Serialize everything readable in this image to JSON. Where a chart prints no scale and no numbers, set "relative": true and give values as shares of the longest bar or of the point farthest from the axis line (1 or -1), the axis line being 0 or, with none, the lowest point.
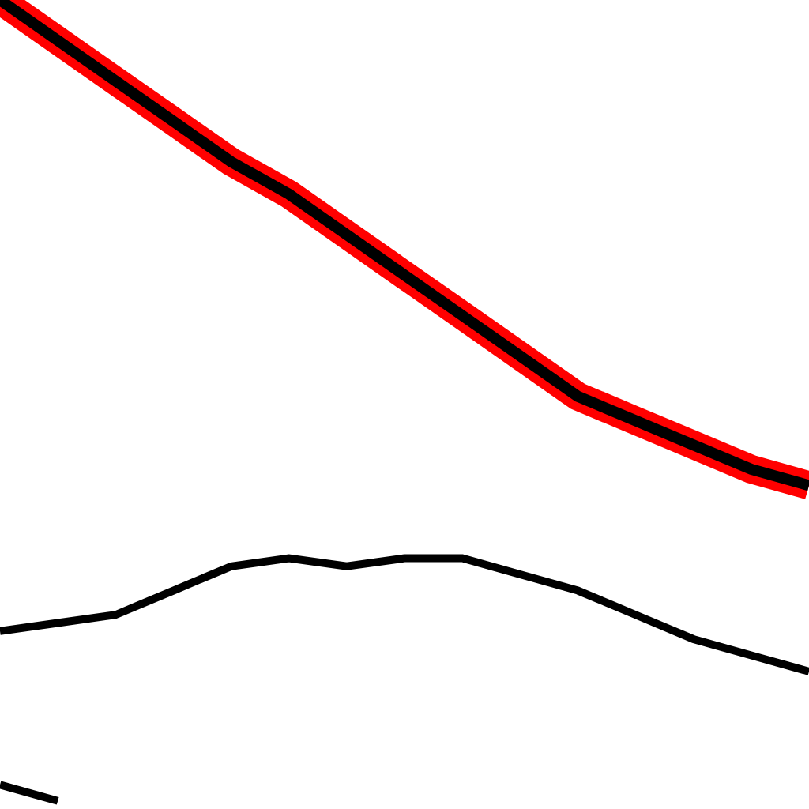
{
  "chart_data": {
    "type": "line",
    "relative": true,
    "marker": "none",
    "line_style": "solid",
    "categories": [
      null,
      null,
      null,
      null,
      null,
      null,
      null,
      null,
      null,
      null,
      null,
      null,
      null,
      null,
      null
    ],
    "series": [
      {
        "color": "#ff0000",
        "values": [
          1.0,
          0.95,
          0.9,
          0.85,
          0.8,
          0.76,
          0.71,
          0.66,
          0.61,
          0.56,
          0.51,
          0.48,
          0.45,
          0.42,
          0.4
        ]
      },
      {
        "color": "#000000",
        "values": [
          1.0,
          0.95,
          0.9,
          0.85,
          0.8,
          0.76,
          0.71,
          0.66,
          0.61,
          0.56,
          0.51,
          0.48,
          0.45,
          0.42,
          0.4
        ]
      },
      {
        "color": "#000000",
        "values": [
          0.22,
          0.23,
          0.24,
          0.27,
          0.3,
          0.31,
          0.3,
          0.31,
          0.31,
          0.29,
          0.27,
          0.24,
          0.21,
          0.19,
          0.17
        ]
      },
      {
        "color": "#000000",
        "values": [
          0.03,
          0.01,
          null,
          null,
          null,
          null,
          null,
          null,
          null,
          null,
          null,
          null,
          null,
          null,
          null
        ]
      }
    ]
  }
}
